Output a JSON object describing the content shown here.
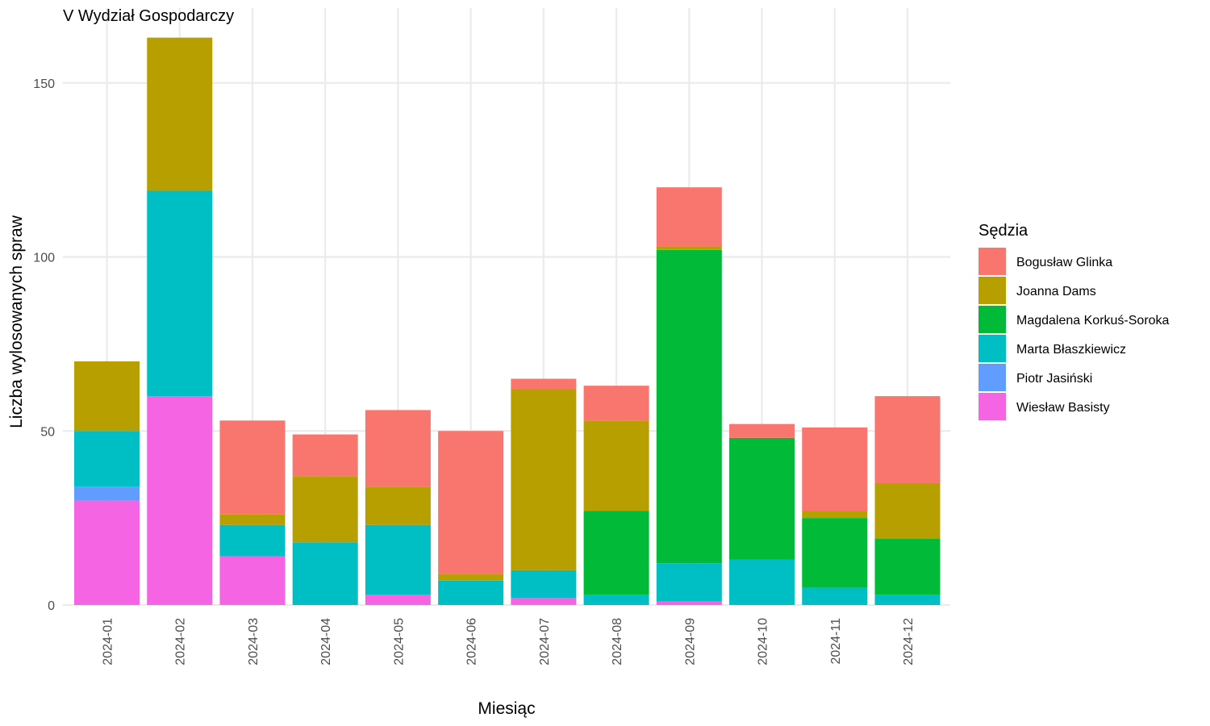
{
  "chart_data": {
    "type": "bar",
    "stacked": true,
    "title": "V Wydział Gospodarczy",
    "xlabel": "Miesiąc",
    "ylabel": "Liczba wylosowanych spraw",
    "ylim": [
      0,
      170
    ],
    "yticks": [
      0,
      50,
      100,
      150
    ],
    "grid": true,
    "legend_title": "Sędzia",
    "legend_position": "right",
    "categories": [
      "2024-01",
      "2024-02",
      "2024-03",
      "2024-04",
      "2024-05",
      "2024-06",
      "2024-07",
      "2024-08",
      "2024-09",
      "2024-10",
      "2024-11",
      "2024-12"
    ],
    "series": [
      {
        "name": "Wiesław Basisty",
        "color": "#F564E3",
        "values": [
          30,
          60,
          14,
          0,
          3,
          0,
          2,
          0,
          1,
          0,
          0,
          0
        ]
      },
      {
        "name": "Piotr Jasiński",
        "color": "#619CFF",
        "values": [
          4,
          0,
          0,
          0,
          0,
          0,
          0,
          0,
          0,
          0,
          0,
          0
        ]
      },
      {
        "name": "Marta Błaszkiewicz",
        "color": "#00BFC4",
        "values": [
          16,
          59,
          9,
          18,
          20,
          7,
          8,
          3,
          11,
          13,
          5,
          3
        ]
      },
      {
        "name": "Magdalena Korkuś-Soroka",
        "color": "#00BA38",
        "values": [
          0,
          0,
          0,
          0,
          0,
          0,
          0,
          24,
          90,
          35,
          20,
          16
        ]
      },
      {
        "name": "Joanna Dams",
        "color": "#B79F00",
        "values": [
          20,
          44,
          3,
          19,
          11,
          2,
          52,
          26,
          1,
          0,
          2,
          16
        ]
      },
      {
        "name": "Bogusław Glinka",
        "color": "#F8766D",
        "values": [
          0,
          0,
          27,
          12,
          22,
          41,
          3,
          10,
          17,
          4,
          24,
          25
        ]
      }
    ],
    "legend_order": [
      "Bogusław Glinka",
      "Joanna Dams",
      "Magdalena Korkuś-Soroka",
      "Marta Błaszkiewicz",
      "Piotr Jasiński",
      "Wiesław Basisty"
    ]
  }
}
